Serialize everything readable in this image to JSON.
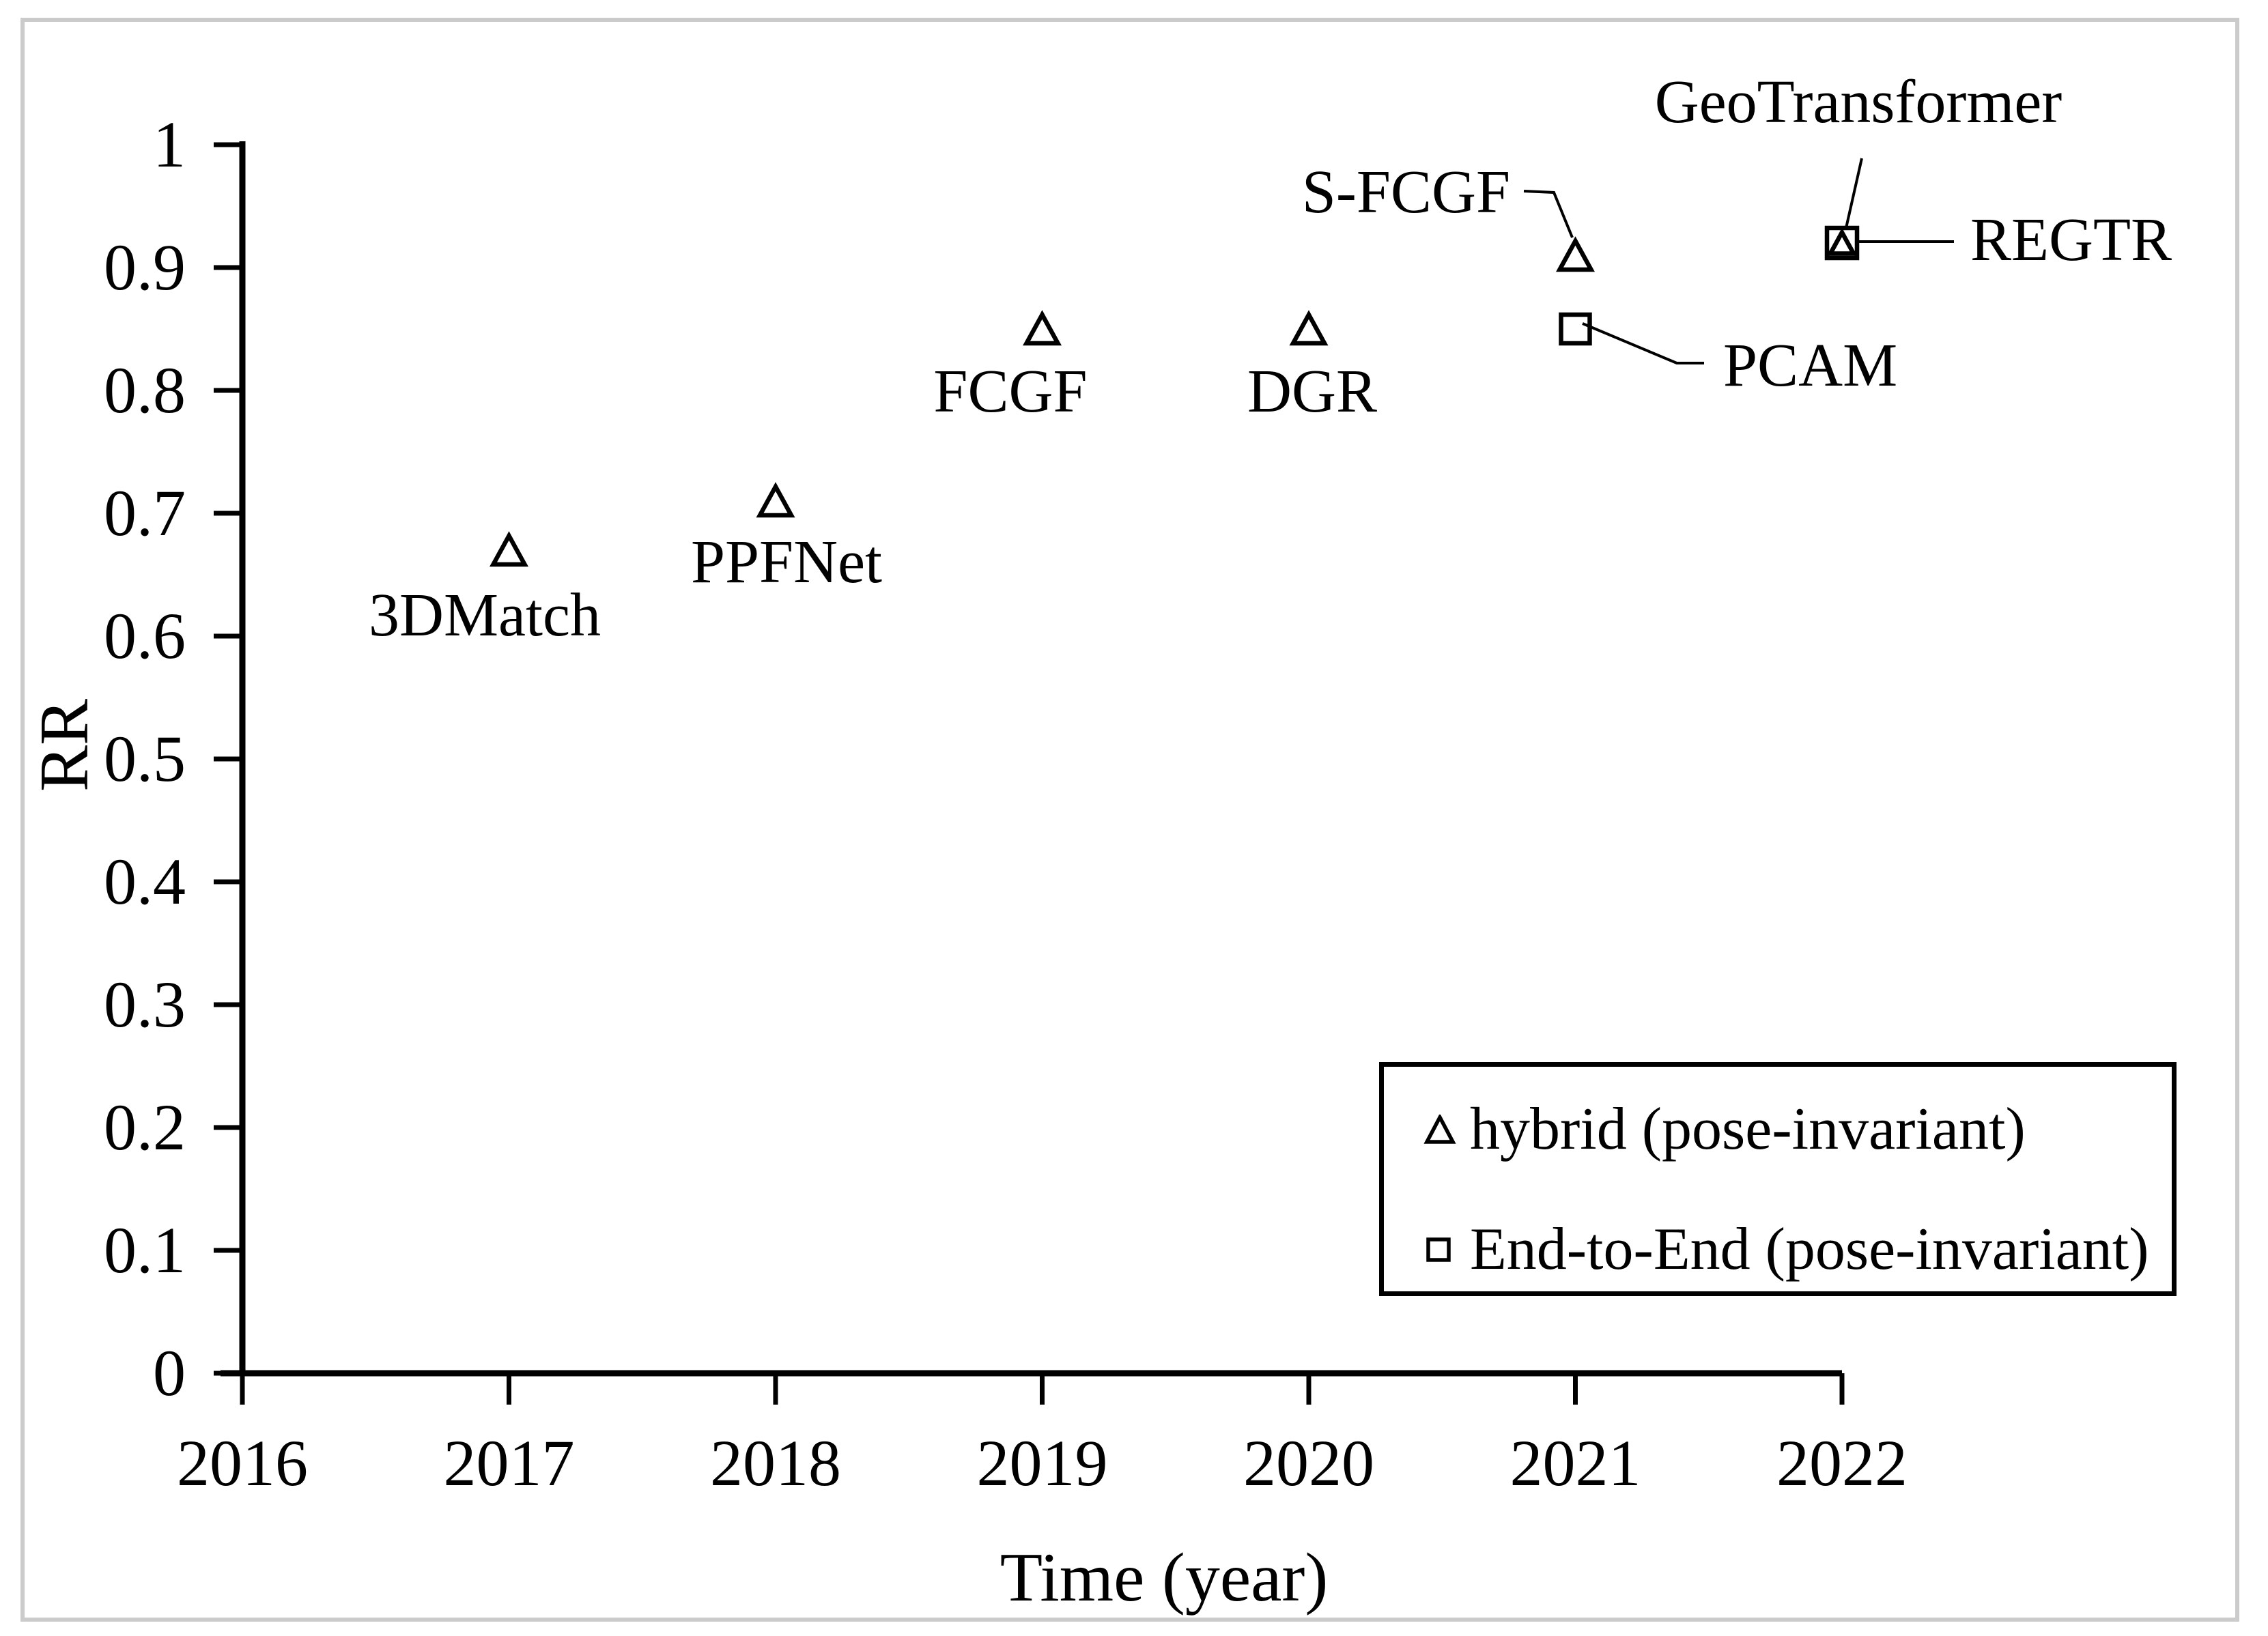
{
  "colors": {
    "foreground": "#000000",
    "background": "#ffffff",
    "frame_border": "#cbcbcb"
  },
  "chart_data": {
    "type": "scatter",
    "title": "",
    "xlabel": "Time (year)",
    "ylabel": "RR",
    "xlim": [
      2016,
      2022.6
    ],
    "ylim": [
      0,
      1
    ],
    "grid": false,
    "xticks": [
      "2016",
      "2017",
      "2018",
      "2019",
      "2020",
      "2021",
      "2022"
    ],
    "yticks": [
      "0",
      "0.1",
      "0.2",
      "0.3",
      "0.4",
      "0.5",
      "0.6",
      "0.7",
      "0.8",
      "0.9",
      "1"
    ],
    "legend_position": "bottom-right",
    "series": [
      {
        "name": "hybrid (pose-invariant)",
        "marker": "triangle",
        "points": [
          {
            "label": "3DMatch",
            "x": 2017,
            "y": 0.67
          },
          {
            "label": "PPFNet",
            "x": 2018,
            "y": 0.71
          },
          {
            "label": "FCGF",
            "x": 2019,
            "y": 0.85
          },
          {
            "label": "DGR",
            "x": 2020,
            "y": 0.85
          },
          {
            "label": "S-FCGF",
            "x": 2021,
            "y": 0.91
          },
          {
            "label": "GeoTransformer",
            "x": 2022,
            "y": 0.92
          }
        ]
      },
      {
        "name": "End-to-End (pose-invariant)",
        "marker": "square",
        "points": [
          {
            "label": "PCAM",
            "x": 2021,
            "y": 0.85
          },
          {
            "label": "REGTR",
            "x": 2022,
            "y": 0.92
          }
        ]
      }
    ]
  }
}
